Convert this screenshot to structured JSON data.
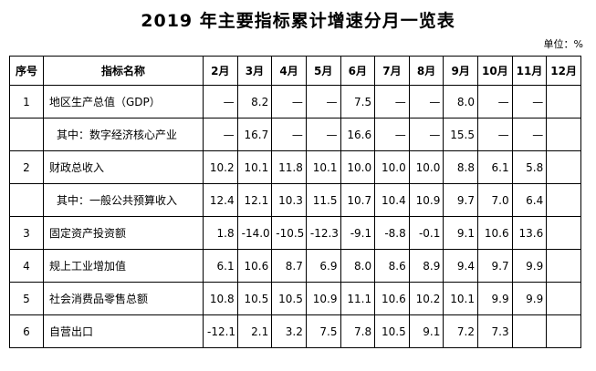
{
  "title": "2019 年主要指标累计增速分月一览表",
  "unit": "单位：%",
  "table": {
    "headers": [
      "序号",
      "指标名称",
      "2月",
      "3月",
      "4月",
      "5月",
      "6月",
      "7月",
      "8月",
      "9月",
      "10月",
      "11月",
      "12月"
    ],
    "rows": [
      {
        "no": "1",
        "name": "地区生产总值（GDP）",
        "values": [
          "—",
          "8.2",
          "—",
          "—",
          "7.5",
          "—",
          "—",
          "8.0",
          "—",
          "—",
          null
        ]
      },
      {
        "no": null,
        "name": "其中：数字经济核心产业",
        "values": [
          "—",
          "16.7",
          "—",
          "—",
          "16.6",
          "—",
          "—",
          "15.5",
          "—",
          "—",
          null
        ]
      },
      {
        "no": "2",
        "name": "财政总收入",
        "values": [
          "10.2",
          "10.1",
          "11.8",
          "10.1",
          "10.0",
          "10.0",
          "10.0",
          "8.8",
          "6.1",
          "5.8",
          null
        ]
      },
      {
        "no": null,
        "name": "其中：一般公共预算收入",
        "values": [
          "12.4",
          "12.1",
          "10.3",
          "11.5",
          "10.7",
          "10.4",
          "10.9",
          "9.7",
          "7.0",
          "6.4",
          null
        ]
      },
      {
        "no": "3",
        "name": "固定资产投资额",
        "values": [
          "1.8",
          "-14.0",
          "-10.5",
          "-12.3",
          "-9.1",
          "-8.8",
          "-0.1",
          "9.1",
          "10.6",
          "13.6",
          null
        ]
      },
      {
        "no": "4",
        "name": "规上工业增加值",
        "values": [
          "6.1",
          "10.6",
          "8.7",
          "6.9",
          "8.0",
          "8.6",
          "8.9",
          "9.4",
          "9.7",
          "9.9",
          null
        ]
      },
      {
        "no": "5",
        "name": "社会消费品零售总额",
        "values": [
          "10.8",
          "10.5",
          "10.5",
          "10.9",
          "11.1",
          "10.6",
          "10.2",
          "10.1",
          "9.9",
          "9.9",
          null
        ]
      },
      {
        "no": "6",
        "name": "自营出口",
        "values": [
          "-12.1",
          "2.1",
          "3.2",
          "7.5",
          "7.8",
          "10.5",
          "9.1",
          "7.2",
          "7.3",
          null,
          null
        ]
      }
    ]
  }
}
